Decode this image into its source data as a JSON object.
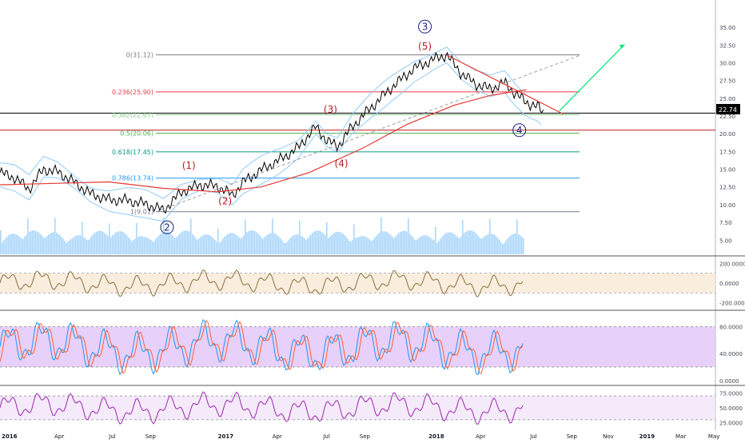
{
  "chart_data": {
    "type": "line",
    "title": "",
    "main_price": {
      "last": "22.74",
      "y_ticks": [
        "35.00",
        "32.50",
        "30.00",
        "27.50",
        "25.00",
        "22.50",
        "20.00",
        "17.50",
        "15.00",
        "12.50",
        "10.00",
        "7.50",
        "5.00"
      ],
      "ylim": [
        3.0,
        37.5
      ],
      "series": [
        {
          "t": 0.0,
          "v": 14.5
        },
        {
          "t": 0.04,
          "v": 13.8
        },
        {
          "t": 0.08,
          "v": 12.2
        },
        {
          "t": 0.12,
          "v": 15.0
        },
        {
          "t": 0.16,
          "v": 14.6
        },
        {
          "t": 0.2,
          "v": 13.3
        },
        {
          "t": 0.25,
          "v": 11.5
        },
        {
          "t": 0.3,
          "v": 10.7
        },
        {
          "t": 0.35,
          "v": 10.6
        },
        {
          "t": 0.4,
          "v": 10.1
        },
        {
          "t": 0.45,
          "v": 9.2
        },
        {
          "t": 0.5,
          "v": 11.8
        },
        {
          "t": 0.55,
          "v": 12.8
        },
        {
          "t": 0.6,
          "v": 12.6
        },
        {
          "t": 0.64,
          "v": 11.3
        },
        {
          "t": 0.67,
          "v": 13.2
        },
        {
          "t": 0.72,
          "v": 14.9
        },
        {
          "t": 0.77,
          "v": 16.3
        },
        {
          "t": 0.82,
          "v": 18.0
        },
        {
          "t": 0.87,
          "v": 21.0
        },
        {
          "t": 0.9,
          "v": 19.0
        },
        {
          "t": 0.93,
          "v": 18.2
        },
        {
          "t": 0.97,
          "v": 21.0
        },
        {
          "t": 1.02,
          "v": 23.6
        },
        {
          "t": 1.08,
          "v": 26.6
        },
        {
          "t": 1.14,
          "v": 29.2
        },
        {
          "t": 1.2,
          "v": 30.6
        },
        {
          "t": 1.23,
          "v": 31.12
        },
        {
          "t": 1.27,
          "v": 28.5
        },
        {
          "t": 1.31,
          "v": 27.0
        },
        {
          "t": 1.35,
          "v": 26.3
        },
        {
          "t": 1.39,
          "v": 27.2
        },
        {
          "t": 1.42,
          "v": 25.6
        },
        {
          "t": 1.45,
          "v": 24.4
        },
        {
          "t": 1.48,
          "v": 23.8
        },
        {
          "t": 1.5,
          "v": 22.74
        }
      ],
      "ma_series": [
        {
          "t": 0.0,
          "v": 12.8
        },
        {
          "t": 0.15,
          "v": 13.0
        },
        {
          "t": 0.3,
          "v": 13.2
        },
        {
          "t": 0.45,
          "v": 12.3
        },
        {
          "t": 0.6,
          "v": 11.8
        },
        {
          "t": 0.72,
          "v": 12.5
        },
        {
          "t": 0.85,
          "v": 14.5
        },
        {
          "t": 1.0,
          "v": 18.0
        },
        {
          "t": 1.12,
          "v": 21.3
        },
        {
          "t": 1.25,
          "v": 24.0
        },
        {
          "t": 1.35,
          "v": 25.4
        },
        {
          "t": 1.45,
          "v": 26.2
        }
      ],
      "fib_levels": [
        {
          "label": "0(31.12)",
          "value": 31.12,
          "color": "#787b86"
        },
        {
          "label": "0.236(25.90)",
          "value": 25.9,
          "color": "#f23645"
        },
        {
          "label": "0.382(22.67)",
          "value": 22.67,
          "color": "#81c784"
        },
        {
          "label": "0.5(20.06)",
          "value": 20.06,
          "color": "#4caf50"
        },
        {
          "label": "0.618(17.45)",
          "value": 17.45,
          "color": "#089981"
        },
        {
          "label": "0.786(13.74)",
          "value": 13.74,
          "color": "#2196f3"
        },
        {
          "label": "1(9.01)",
          "value": 9.01,
          "color": "#787b86"
        }
      ],
      "horizontal_lines": [
        {
          "value": 22.9,
          "color": "#000000"
        },
        {
          "value": 20.5,
          "color": "#b71c1c"
        }
      ],
      "wave_labels": [
        {
          "text": "(1)",
          "t": 0.52,
          "v": 15.5,
          "color": "#b71c1c",
          "circled": false
        },
        {
          "text": "(2)",
          "t": 0.62,
          "v": 10.5,
          "color": "#b71c1c",
          "circled": false
        },
        {
          "text": "(3)",
          "t": 0.91,
          "v": 23.4,
          "color": "#b71c1c",
          "circled": false
        },
        {
          "text": "(4)",
          "t": 0.94,
          "v": 15.8,
          "color": "#b71c1c",
          "circled": false
        },
        {
          "text": "(5)",
          "t": 1.17,
          "v": 32.3,
          "color": "#b71c1c",
          "circled": false
        },
        {
          "text": "2",
          "t": 0.46,
          "v": 6.8,
          "color": "#1a237e",
          "circled": true
        },
        {
          "text": "3",
          "t": 1.17,
          "v": 35.1,
          "color": "#1a237e",
          "circled": true
        },
        {
          "text": "4",
          "t": 1.43,
          "v": 20.5,
          "color": "#1a237e",
          "circled": true
        }
      ]
    },
    "x_axis": {
      "labels": [
        {
          "text": "2016",
          "t": 0.0,
          "bold": true
        },
        {
          "text": "Apr",
          "t": 0.15,
          "bold": false
        },
        {
          "text": "Jul",
          "t": 0.3,
          "bold": false
        },
        {
          "text": "Sep",
          "t": 0.4,
          "bold": false
        },
        {
          "text": "2017",
          "t": 0.6,
          "bold": true
        },
        {
          "text": "Apr",
          "t": 0.75,
          "bold": false
        },
        {
          "text": "Jul",
          "t": 0.89,
          "bold": false
        },
        {
          "text": "Sep",
          "t": 0.99,
          "bold": false
        },
        {
          "text": "2018",
          "t": 1.18,
          "bold": true
        },
        {
          "text": "Apr",
          "t": 1.31,
          "bold": false
        },
        {
          "text": "Jul",
          "t": 1.46,
          "bold": false
        },
        {
          "text": "Sep",
          "t": 1.56,
          "bold": false
        },
        {
          "text": "Nov",
          "t": 1.66,
          "bold": false
        },
        {
          "text": "2019",
          "t": 1.76,
          "bold": true
        },
        {
          "text": "Mar",
          "t": 1.86,
          "bold": false
        },
        {
          "text": "May",
          "t": 1.95,
          "bold": false
        }
      ]
    },
    "panels": [
      {
        "name": "cci",
        "y_ticks": [
          "200.0000",
          "0.0000",
          "-200.0000"
        ],
        "ylim": [
          -260,
          260
        ],
        "band": [
          -100,
          100
        ],
        "band_color": "#f7e9d4",
        "line_color": "#8d6e3f"
      },
      {
        "name": "stochastic",
        "y_ticks": [
          "80.0000",
          "40.0000",
          "0.0000"
        ],
        "ylim": [
          -5,
          102
        ],
        "band": [
          20,
          80
        ],
        "band_color": "#e1c4f7",
        "line_color": "#2196f3"
      },
      {
        "name": "rsi",
        "y_ticks": [
          "75.0000",
          "50.0000",
          "25.0000"
        ],
        "ylim": [
          15,
          85
        ],
        "band": [
          30,
          70
        ],
        "band_color": "#f3e5f9",
        "line_color": "#9c27b0"
      }
    ]
  }
}
